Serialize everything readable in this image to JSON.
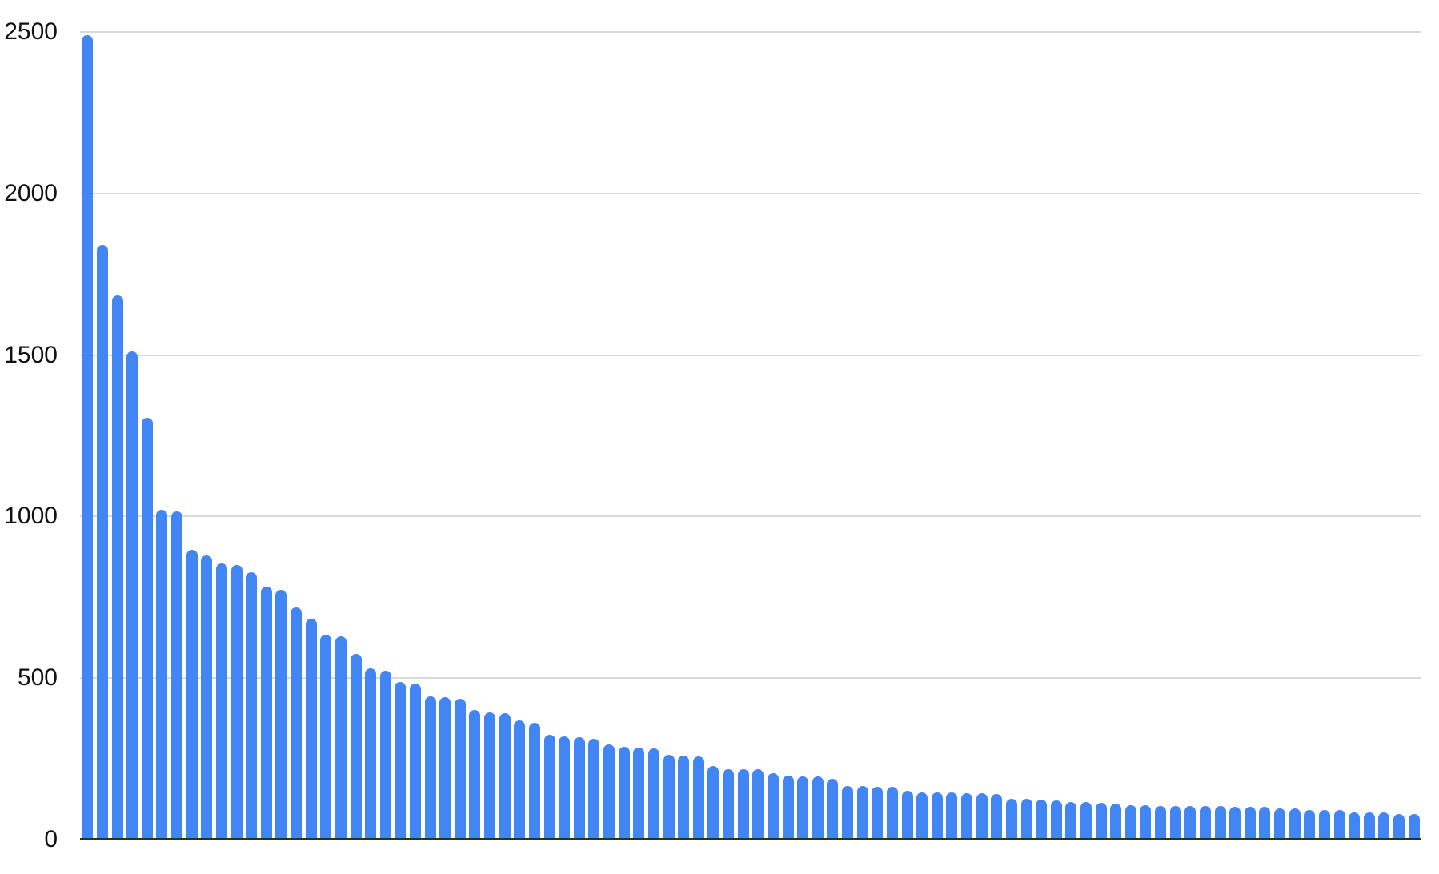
{
  "chart_data": {
    "type": "bar",
    "title": "",
    "xlabel": "",
    "ylabel": "",
    "ylim": [
      0,
      2500
    ],
    "yticks": [
      0,
      500,
      1000,
      1500,
      2000,
      2500
    ],
    "grid": true,
    "legend_position": "none",
    "x_tick_labels_visible": false,
    "values": [
      2490,
      1840,
      1685,
      1512,
      1307,
      1022,
      1015,
      898,
      880,
      855,
      850,
      828,
      784,
      773,
      719,
      685,
      634,
      629,
      576,
      530,
      524,
      487,
      482,
      444,
      441,
      437,
      402,
      394,
      392,
      369,
      363,
      324,
      320,
      318,
      313,
      295,
      288,
      285,
      283,
      263,
      260,
      258,
      229,
      219,
      218,
      217,
      206,
      199,
      197,
      196,
      189,
      166,
      166,
      164,
      164,
      150,
      146,
      145,
      145,
      144,
      143,
      141,
      126,
      126,
      125,
      121,
      117,
      116,
      113,
      112,
      107,
      106,
      105,
      104,
      104,
      103,
      103,
      102,
      102,
      102,
      97,
      96,
      92,
      92,
      91,
      85,
      84,
      84,
      80,
      79
    ]
  },
  "colors": {
    "bar": "#4285F4",
    "gridline": "#d9d9d9",
    "axis_line": "#2f2f2f",
    "tick_label": "#111111",
    "background": "#ffffff"
  }
}
